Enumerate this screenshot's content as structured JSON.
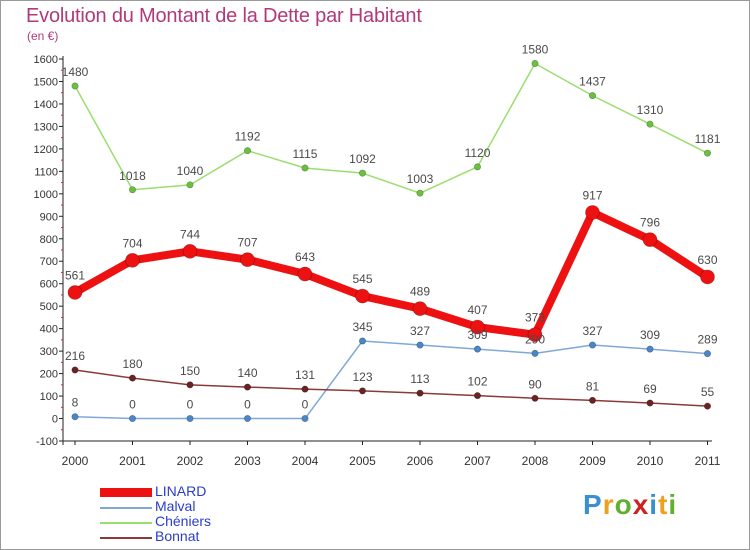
{
  "header": {
    "title": "Evolution du Montant de la Dette par Habitant",
    "subtitle": "(en €)"
  },
  "brand": {
    "letters": [
      "P",
      "r",
      "o",
      "x",
      "i",
      "t",
      "i"
    ],
    "colors": [
      "#3a8fd0",
      "#f0a020",
      "#60b030",
      "#d02020",
      "#3a8fd0",
      "#f0a020",
      "#60b030"
    ]
  },
  "chart_data": {
    "type": "line",
    "categories": [
      "2000",
      "2001",
      "2002",
      "2003",
      "2004",
      "2005",
      "2006",
      "2007",
      "2008",
      "2009",
      "2010",
      "2011"
    ],
    "ylim": [
      -100,
      1600
    ],
    "yticks": [
      -100,
      0,
      100,
      200,
      300,
      400,
      500,
      600,
      700,
      800,
      900,
      1000,
      1100,
      1200,
      1300,
      1400,
      1500,
      1600
    ],
    "grid": false,
    "legend_position": "bottom-left",
    "series": [
      {
        "name": "LINARD",
        "values": [
          561,
          704,
          744,
          707,
          643,
          545,
          489,
          407,
          373,
          917,
          796,
          630
        ],
        "labels": [
          "561",
          "704",
          "744",
          "707",
          "643",
          "545",
          "489",
          "407",
          "373",
          "917",
          "796",
          "630"
        ],
        "color": "#ee1111",
        "marker": "#ee1111",
        "labelColor": "#4a4a4a"
      },
      {
        "name": "Malval",
        "values": [
          8,
          0,
          0,
          0,
          0,
          345,
          327,
          309,
          290,
          327,
          309,
          289
        ],
        "labels": [
          "8",
          "0",
          "0",
          "0",
          "0",
          "345",
          "327",
          "309",
          "290",
          "327",
          "309",
          "289"
        ],
        "color": "#7fa8d8",
        "marker": "#4a86c8",
        "labelColor": "#4a4a4a"
      },
      {
        "name": "Chéniers",
        "values": [
          1480,
          1018,
          1040,
          1192,
          1115,
          1092,
          1003,
          1120,
          1580,
          1437,
          1310,
          1181
        ],
        "labels": [
          "1480",
          "1018",
          "1040",
          "1192",
          "1115",
          "1092",
          "1003",
          "1120",
          "1580",
          "1437",
          "1310",
          "1181"
        ],
        "color": "#9ade6f",
        "marker": "#6cc040",
        "labelColor": "#4a4a4a"
      },
      {
        "name": "Bonnat",
        "values": [
          216,
          180,
          150,
          140,
          131,
          123,
          113,
          102,
          90,
          81,
          69,
          55
        ],
        "labels": [
          "216",
          "180",
          "150",
          "140",
          "131",
          "123",
          "113",
          "102",
          "90",
          "81",
          "69",
          "55"
        ],
        "color": "#8a3a3a",
        "marker": "#6a2222",
        "labelColor": "#4a4a4a"
      }
    ]
  }
}
